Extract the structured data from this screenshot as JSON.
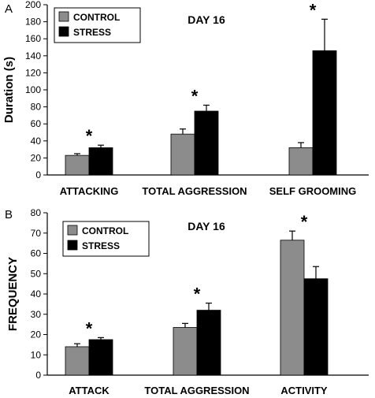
{
  "chart_data": [
    {
      "type": "bar",
      "panel": "A",
      "title": "DAY 16",
      "xlabel": "",
      "ylabel": "Duration  (s)",
      "ylim": [
        0,
        200
      ],
      "yticks": [
        0,
        20,
        40,
        60,
        80,
        100,
        120,
        140,
        160,
        180,
        200
      ],
      "categories": [
        "ATTACKING",
        "TOTAL AGGRESSION",
        "SELF GROOMING"
      ],
      "series": [
        {
          "name": "CONTROL",
          "color": "#8c8c8c",
          "values": [
            23,
            48,
            32
          ],
          "errors": [
            2,
            6,
            6
          ]
        },
        {
          "name": "STRESS",
          "color": "#000000",
          "values": [
            32,
            75,
            146
          ],
          "errors": [
            3,
            7,
            37
          ]
        }
      ],
      "annotations": [
        "*",
        "*",
        "*"
      ],
      "legend": "top-left"
    },
    {
      "type": "bar",
      "panel": "B",
      "title": "DAY 16",
      "xlabel": "",
      "ylabel": "FREQUENCY",
      "ylim": [
        0,
        80
      ],
      "yticks": [
        0,
        10,
        20,
        30,
        40,
        50,
        60,
        70,
        80
      ],
      "categories": [
        "ATTACK",
        "TOTAL  AGGRESSION",
        "ACTIVITY"
      ],
      "series": [
        {
          "name": "CONTROL",
          "color": "#8c8c8c",
          "values": [
            14,
            23.5,
            66.5
          ],
          "errors": [
            1.5,
            2,
            4.5
          ]
        },
        {
          "name": "STRESS",
          "color": "#000000",
          "values": [
            17.5,
            32,
            47.5
          ],
          "errors": [
            1,
            3.5,
            6
          ]
        }
      ],
      "annotations": [
        "*",
        "*",
        "*"
      ],
      "legend": "top-left"
    }
  ]
}
